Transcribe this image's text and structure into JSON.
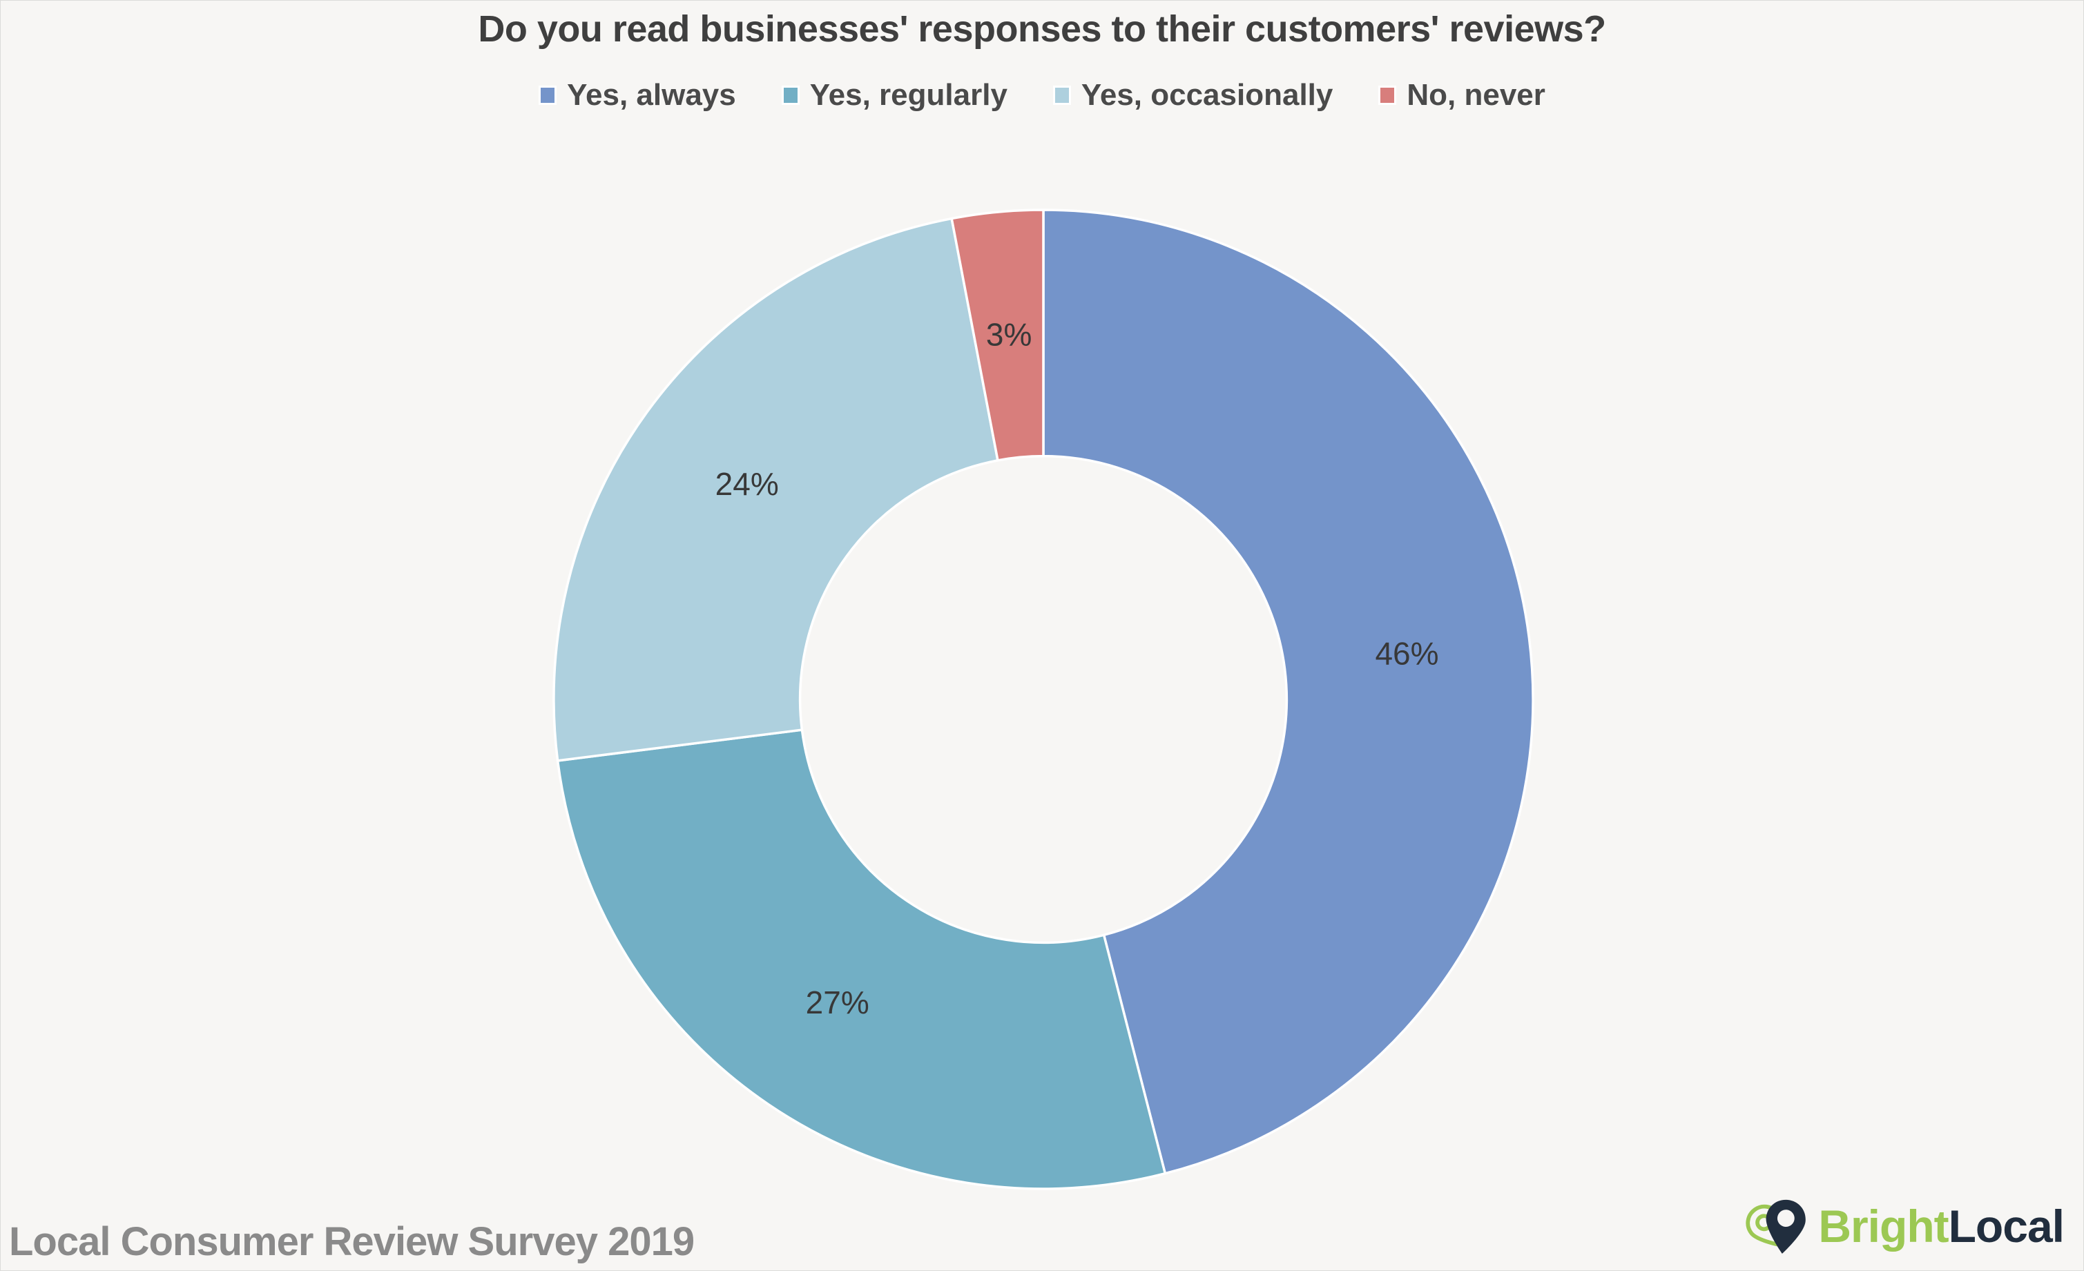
{
  "header": {
    "title": "Do you read businesses' responses to their customers' reviews?"
  },
  "chart_data": {
    "type": "pie",
    "subtype": "donut",
    "title": "Do you read businesses' responses to their customers' reviews?",
    "categories": [
      "Yes, always",
      "Yes, regularly",
      "Yes, occasionally",
      "No, never"
    ],
    "values": [
      46,
      27,
      24,
      3
    ],
    "labels": [
      "46%",
      "27%",
      "24%",
      "3%"
    ],
    "colors": [
      "#7494CA",
      "#72AFC5",
      "#AED0DE",
      "#D87E7C"
    ],
    "legend_position": "top",
    "start_angle_deg": 0,
    "direction": "clockwise",
    "outer_radius_px": 709,
    "inner_radius_ratio": 0.497,
    "slice_gap_color": "#FFFFFF",
    "label_color": "#383838"
  },
  "footer": {
    "source": "Local Consumer Review Survey 2019",
    "brand": {
      "bright": "Bright",
      "local": "Local",
      "green": "#9CC853",
      "navy": "#212E3E"
    }
  },
  "page": {
    "background": "#F7F6F4"
  }
}
